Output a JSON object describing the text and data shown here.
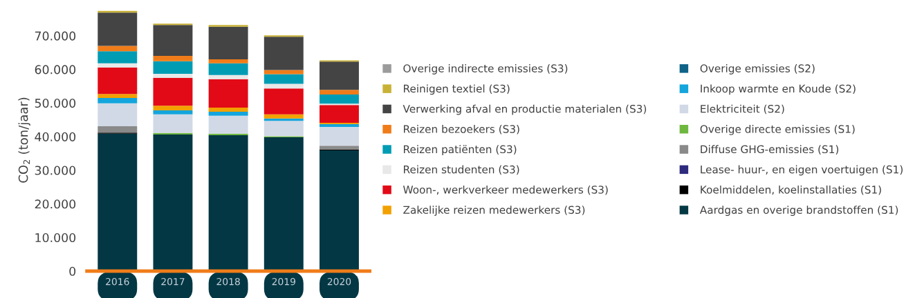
{
  "chart_data": {
    "type": "bar",
    "stacked": true,
    "ylabel": "CO$_{2}$ (ton/jaar)",
    "categories": [
      "2016",
      "2017",
      "2018",
      "2019",
      "2020"
    ],
    "ylim": [
      0,
      78000
    ],
    "yticks": [
      0,
      {
        "value": 10000,
        "label": "10.000"
      },
      {
        "value": 20000,
        "label": "20.000"
      },
      {
        "value": 30000,
        "label": "30.000"
      },
      {
        "value": 40000,
        "label": "40.000"
      },
      {
        "value": 50000,
        "label": "50.000"
      },
      {
        "value": 60000,
        "label": "60.000"
      },
      {
        "value": 70000,
        "label": "70.000"
      }
    ],
    "grid": false,
    "legend": "right",
    "marker": "square",
    "series": [
      {
        "name": "Aardgas en overige brandstoffen (S1)",
        "color": "#033744",
        "values": [
          40900,
          40600,
          40400,
          39800,
          35900
        ]
      },
      {
        "name": "Koelmiddelen, koelinstallaties (S1)",
        "color": "#000000",
        "values": [
          300,
          0,
          0,
          0,
          200
        ]
      },
      {
        "name": "Lease- huur-, en eigen voertuigen (S1)",
        "color": "#2e2a7e",
        "values": [
          0,
          0,
          0,
          0,
          0
        ]
      },
      {
        "name": "Diffuse GHG-emissies (S1)",
        "color": "#8a8a8a",
        "values": [
          1900,
          0,
          0,
          0,
          1200
        ]
      },
      {
        "name": "Overige directe emissies (S1)",
        "color": "#6fb840",
        "values": [
          0,
          500,
          500,
          300,
          0
        ]
      },
      {
        "name": "Elektriciteit (S2)",
        "color": "#d1d9e6",
        "values": [
          6800,
          5500,
          5300,
          4600,
          5600
        ]
      },
      {
        "name": "Inkoop warmte en Koude (S2)",
        "color": "#14a5dc",
        "values": [
          1600,
          1200,
          1200,
          700,
          800
        ]
      },
      {
        "name": "Overige emissies (S2)",
        "color": "#0e6387",
        "values": [
          0,
          0,
          0,
          0,
          0
        ]
      },
      {
        "name": "Zakelijke reizen medewerkers (S3)",
        "color": "#f2a100",
        "values": [
          1200,
          1400,
          1200,
          1200,
          400
        ]
      },
      {
        "name": "Woon-, werkverkeer medewerkers (S3)",
        "color": "#e20a16",
        "values": [
          7900,
          8300,
          8500,
          7700,
          5300
        ]
      },
      {
        "name": "Reizen studenten (S3)",
        "color": "#e8e8e8",
        "values": [
          1200,
          1200,
          1200,
          1400,
          400
        ]
      },
      {
        "name": "Reizen patiënten (S3)",
        "color": "#009cb4",
        "values": [
          3600,
          3700,
          3500,
          2900,
          2700
        ]
      },
      {
        "name": "Reizen bezoekers (S3)",
        "color": "#f07c19",
        "values": [
          1600,
          1600,
          1200,
          1200,
          1400
        ]
      },
      {
        "name": "Verwerking afval en productie materialen (S3)",
        "color": "#444444",
        "values": [
          9900,
          9200,
          9700,
          9900,
          8400
        ]
      },
      {
        "name": "Reinigen textiel (S3)",
        "color": "#c8b236",
        "values": [
          500,
          400,
          500,
          400,
          400
        ]
      },
      {
        "name": "Overige indirecte emissies (S3)",
        "color": "#9b9b9b",
        "values": [
          0,
          0,
          0,
          0,
          0
        ]
      }
    ]
  }
}
